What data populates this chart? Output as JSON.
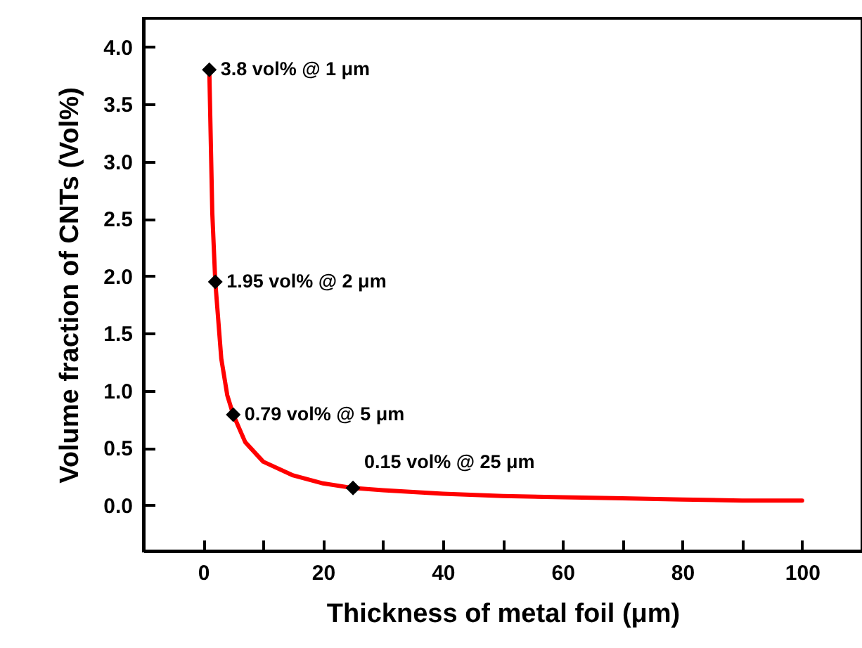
{
  "chart_data": {
    "type": "line",
    "xlabel": "Thickness of metal foil (μm)",
    "ylabel": "Volume fraction of CNTs  (Vol%)",
    "xlim": [
      -10,
      110
    ],
    "ylim": [
      -0.4,
      4.25
    ],
    "xticks": [
      0,
      {
        "value": 10,
        "label": null
      },
      20,
      {
        "value": 30,
        "label": null
      },
      40,
      {
        "value": 50,
        "label": null
      },
      60,
      {
        "value": 70,
        "label": null
      },
      80,
      {
        "value": 90,
        "label": null
      },
      100
    ],
    "yticks": [
      {
        "value": 0,
        "label": "0.0"
      },
      {
        "value": 0.5,
        "label": "0.5"
      },
      {
        "value": 1,
        "label": "1.0"
      },
      {
        "value": 1.5,
        "label": "1.5"
      },
      {
        "value": 2,
        "label": "2.0"
      },
      {
        "value": 2.5,
        "label": "2.5"
      },
      {
        "value": 3,
        "label": "3.0"
      },
      {
        "value": 3.5,
        "label": "3.5"
      },
      {
        "value": 4,
        "label": "4.0"
      }
    ],
    "grid": false,
    "series": [
      {
        "color": "#ff0000",
        "marker": "none",
        "line_style": "solid",
        "x": [
          1,
          1.5,
          2,
          3,
          4,
          5,
          7,
          10,
          15,
          20,
          25,
          30,
          40,
          50,
          60,
          70,
          80,
          90,
          100
        ],
        "values": [
          3.8,
          2.55,
          1.95,
          1.28,
          0.96,
          0.79,
          0.55,
          0.38,
          0.26,
          0.19,
          0.15,
          0.13,
          0.1,
          0.08,
          0.07,
          0.06,
          0.05,
          0.04,
          0.04
        ]
      },
      {
        "type": "scatter",
        "color": "#000000",
        "marker": "diamond",
        "x": [
          1,
          2,
          5,
          25
        ],
        "values": [
          3.8,
          1.95,
          0.79,
          0.15
        ]
      }
    ],
    "annotations": [
      {
        "text": "3.8 vol% @ 1 μm",
        "x": 1,
        "y": 3.8
      },
      {
        "text": "1.95 vol% @ 2 μm",
        "x": 2,
        "y": 1.95
      },
      {
        "text": "0.79 vol% @ 5 μm",
        "x": 5,
        "y": 0.79
      },
      {
        "text": "0.15 vol% @ 25 μm",
        "x": 25,
        "y": 0.15
      }
    ]
  }
}
